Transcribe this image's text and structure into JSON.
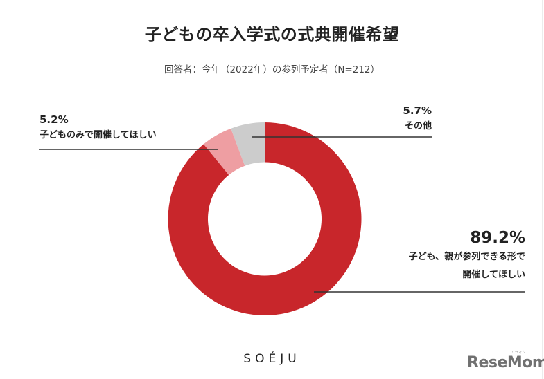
{
  "header": {
    "title": "子どもの卒入学式の式典開催希望",
    "subtitle": "回答者：今年（2022年）の参列予定者（N=212）"
  },
  "labels": {
    "parents": {
      "pct": "89.2%",
      "line1": "子ども、親が参列できる形で",
      "line2": "開催してほしい"
    },
    "kids_only": {
      "pct": "5.2%",
      "line1": "子どものみで開催してほしい"
    },
    "other": {
      "pct": "5.7%",
      "line1": "その他"
    }
  },
  "footer": {
    "brand": "SOÉJU",
    "watermark": "ReseMom",
    "watermark_kana": "リセマム"
  },
  "colors": {
    "parents": "#C8262B",
    "kids_only": "#EE9EA2",
    "other": "#CCCCCC",
    "leader_line": "#333333"
  },
  "chart_data": {
    "type": "pie",
    "variant": "donut",
    "title": "子どもの卒入学式の式典開催希望",
    "subtitle": "回答者：今年（2022年）の参列予定者（N=212）",
    "n": 212,
    "categories": [
      "子ども、親が参列できる形で開催してほしい",
      "子どものみで開催してほしい",
      "その他"
    ],
    "values": [
      89.2,
      5.2,
      5.7
    ],
    "unit": "%",
    "colors": [
      "#C8262B",
      "#EE9EA2",
      "#CCCCCC"
    ],
    "start_angle_deg": 0,
    "direction": "clockwise",
    "legend": "none (leader-line labels)"
  }
}
